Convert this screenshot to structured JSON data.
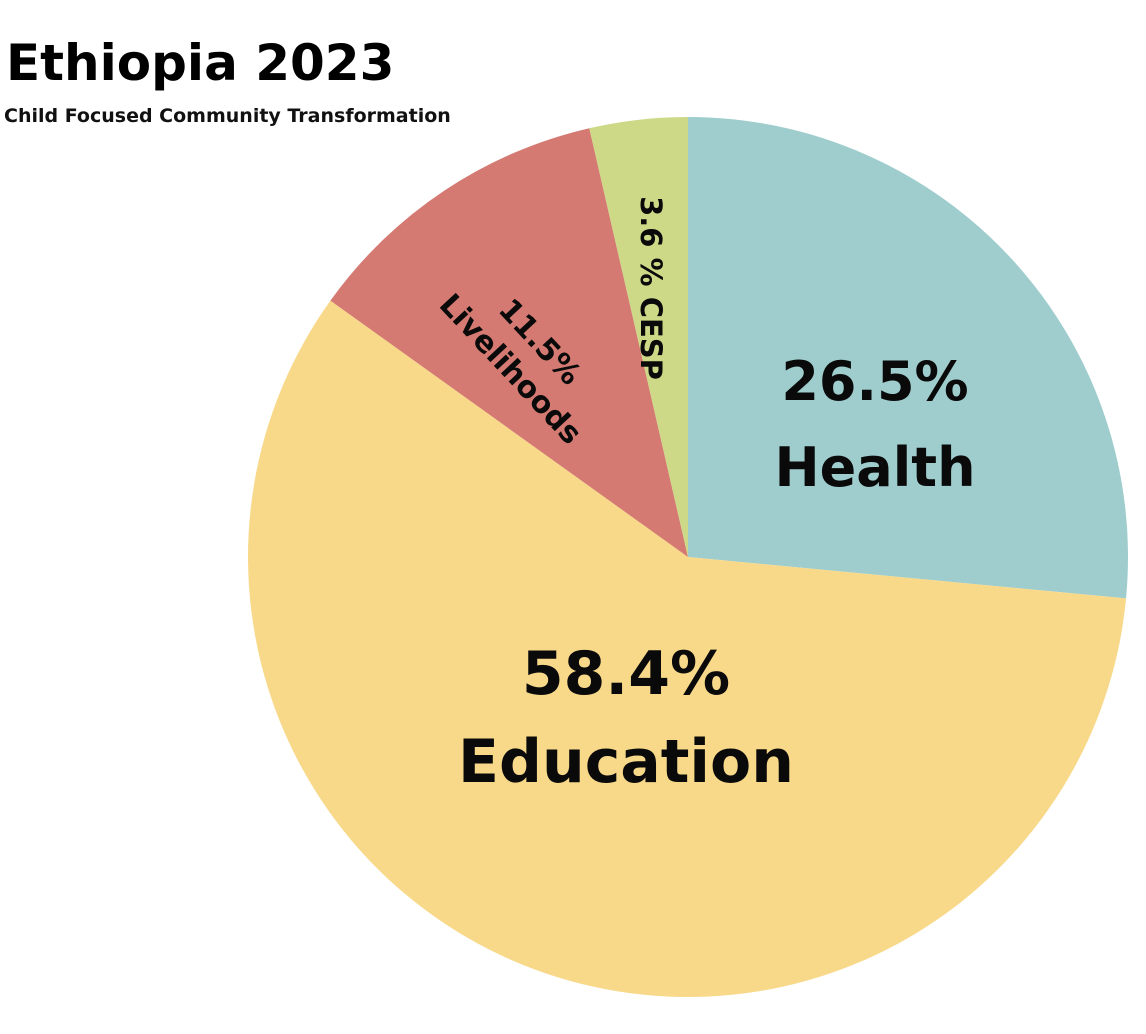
{
  "chart_data": {
    "type": "pie",
    "title": "Ethiopia 2023",
    "subtitle": "Child Focused Community Transformation",
    "slices": [
      {
        "label": "Health",
        "value": 26.5,
        "value_text": "26.5%",
        "color": "#9fcdcd"
      },
      {
        "label": "Education",
        "value": 58.4,
        "value_text": "58.4%",
        "color": "#f8d98a"
      },
      {
        "label": "Livelihoods",
        "value": 11.5,
        "value_text": "11.5%",
        "color": "#d47a72"
      },
      {
        "label": "CESP",
        "value": 3.6,
        "value_text": "3.6 %",
        "color": "#cdd986"
      }
    ],
    "start": "12 o'clock",
    "direction": "clockwise",
    "legend": "none"
  }
}
